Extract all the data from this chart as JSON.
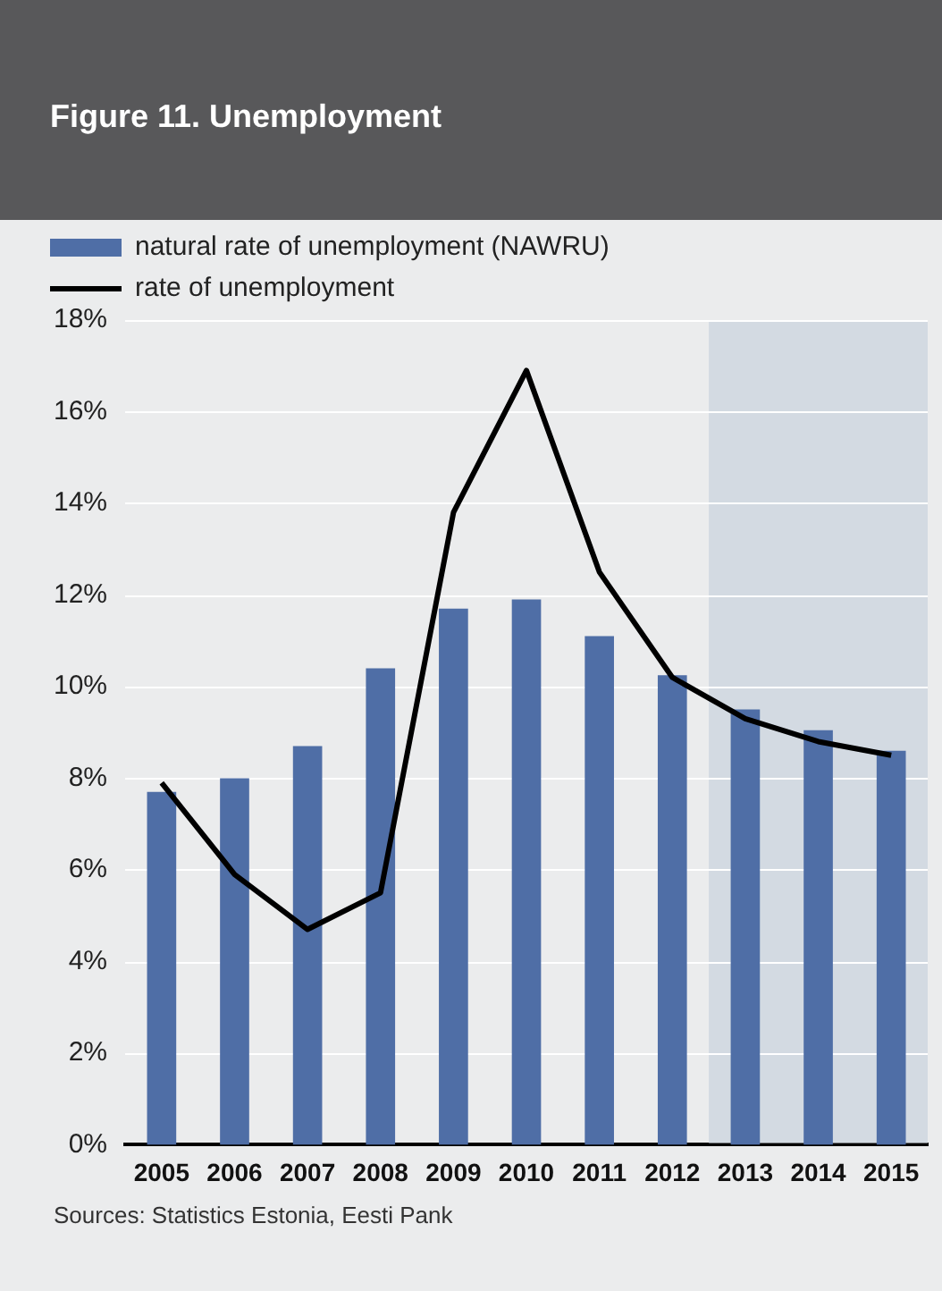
{
  "chart_data": {
    "type": "bar",
    "title": "Figure 11. Unemployment",
    "categories": [
      "2005",
      "2006",
      "2007",
      "2008",
      "2009",
      "2010",
      "2011",
      "2012",
      "2013",
      "2014",
      "2015"
    ],
    "series": [
      {
        "name": "natural rate of unemployment (NAWRU)",
        "color": "#4f6ea6",
        "values": [
          7.7,
          8.0,
          8.7,
          10.4,
          11.7,
          11.9,
          11.1,
          10.25,
          9.5,
          9.05,
          8.6
        ]
      },
      {
        "name": "rate of unemployment",
        "type": "line",
        "color": "#000000",
        "values": [
          7.9,
          5.9,
          4.7,
          5.5,
          13.8,
          16.9,
          12.5,
          10.2,
          9.3,
          8.8,
          8.5
        ]
      }
    ],
    "ylim": [
      0,
      18
    ],
    "yticks": [
      {
        "value": 0,
        "label": "0%"
      },
      {
        "value": 2,
        "label": "2%"
      },
      {
        "value": 4,
        "label": "4%"
      },
      {
        "value": 6,
        "label": "6%"
      },
      {
        "value": 8,
        "label": "8%"
      },
      {
        "value": 10,
        "label": "10%"
      },
      {
        "value": 12,
        "label": "12%"
      },
      {
        "value": 14,
        "label": "14%"
      },
      {
        "value": 16,
        "label": "16%"
      },
      {
        "value": 18,
        "label": "18%"
      }
    ],
    "bands": [
      {
        "axis": "x",
        "from": "2013",
        "to": "2015",
        "color": "#d3dae2"
      }
    ],
    "grid": "y",
    "legend": "top left",
    "marker": "none",
    "line_style": "solid",
    "annotations": [
      "Sources: Statistics Estonia, Eesti Pank"
    ]
  }
}
